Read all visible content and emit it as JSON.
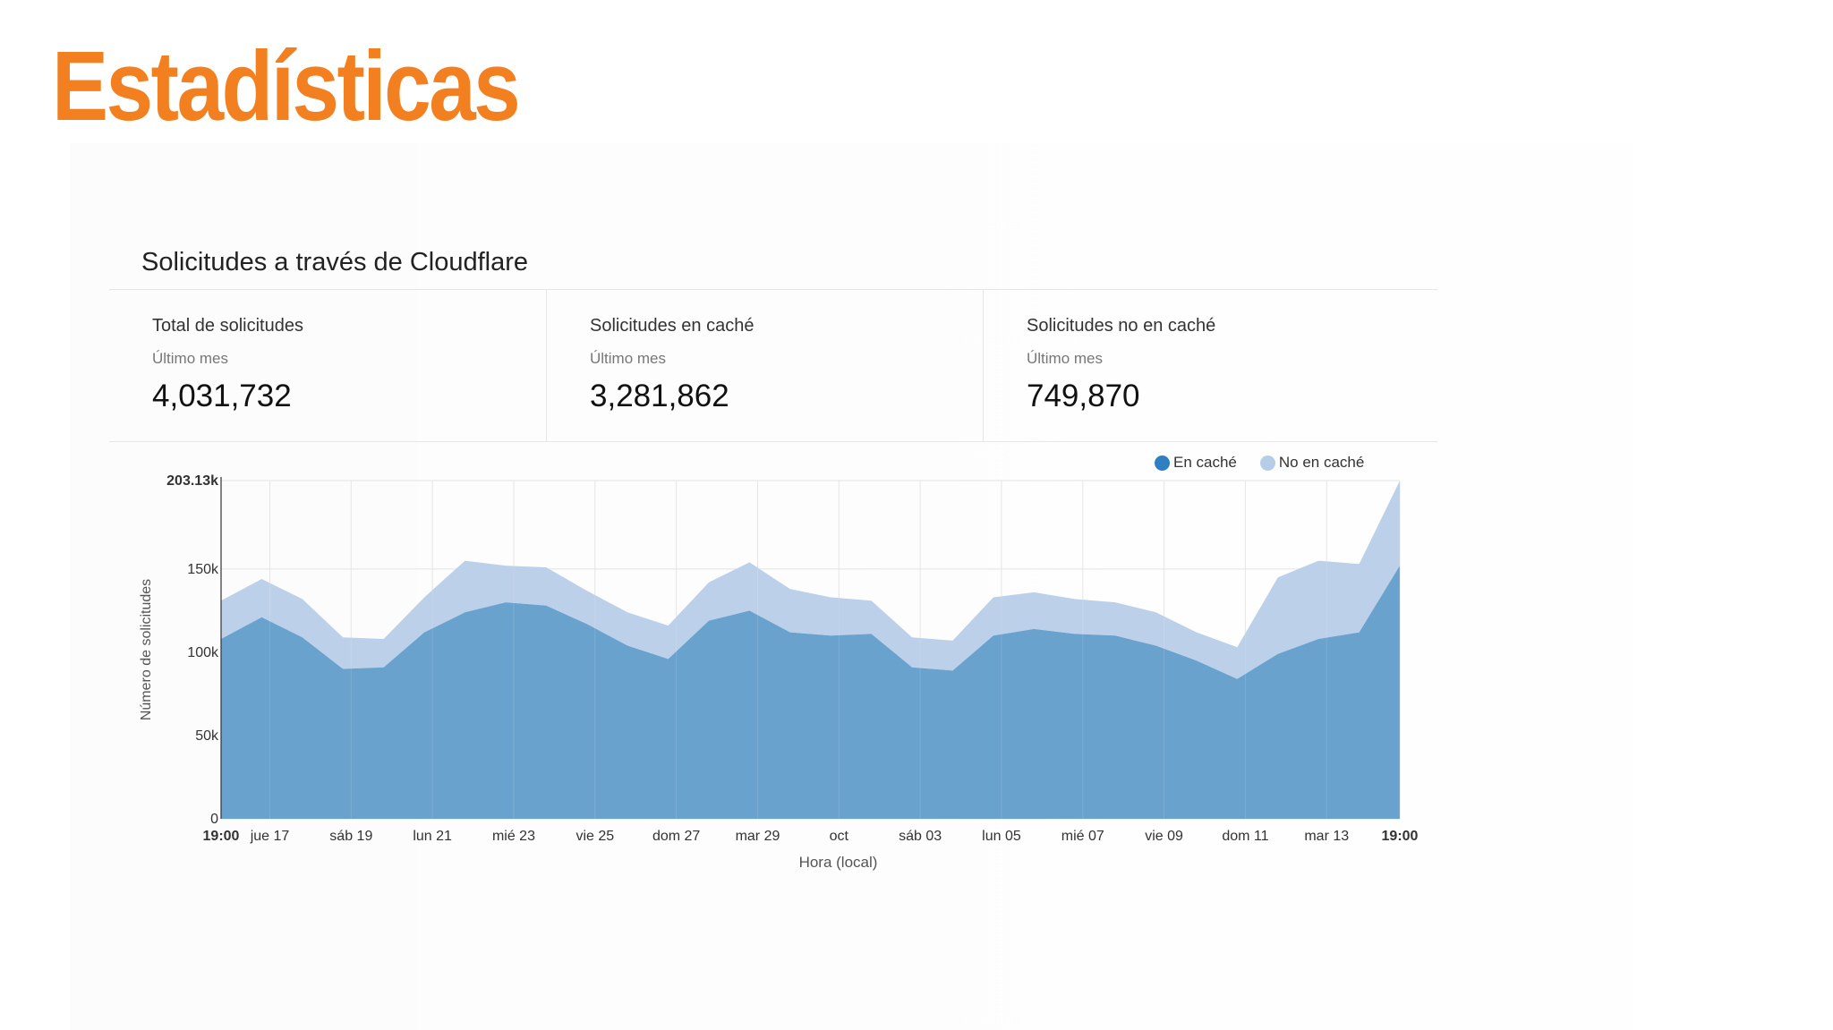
{
  "title": "Estadísticas",
  "panel": {
    "title": "Solicitudes a través de Cloudflare"
  },
  "stats": [
    {
      "label": "Total de solicitudes",
      "period": "Último mes",
      "value": "4,031,732"
    },
    {
      "label": "Solicitudes en caché",
      "period": "Último mes",
      "value": "3,281,862"
    },
    {
      "label": "Solicitudes no en caché",
      "period": "Último mes",
      "value": "749,870"
    }
  ],
  "legend": [
    {
      "label": "En caché",
      "color": "#2f7fc1"
    },
    {
      "label": "No en caché",
      "color": "#b6cde8"
    }
  ],
  "chart_data": {
    "type": "area",
    "stacked": true,
    "xlabel": "Hora (local)",
    "ylabel": "Número de solicitudes",
    "ylim": [
      0,
      203130
    ],
    "yticks": [
      {
        "value": 0,
        "label": "0"
      },
      {
        "value": 50000,
        "label": "50k"
      },
      {
        "value": 100000,
        "label": "100k"
      },
      {
        "value": 150000,
        "label": "150k"
      },
      {
        "value": 203130,
        "label": "203.13k"
      }
    ],
    "xticks": [
      {
        "at": 0,
        "label": "19:00",
        "bold": true
      },
      {
        "at": 1.2,
        "label": "jue 17"
      },
      {
        "at": 3.2,
        "label": "sáb 19"
      },
      {
        "at": 5.2,
        "label": "lun 21"
      },
      {
        "at": 7.2,
        "label": "mié 23"
      },
      {
        "at": 9.2,
        "label": "vie 25"
      },
      {
        "at": 11.2,
        "label": "dom 27"
      },
      {
        "at": 13.2,
        "label": "mar 29"
      },
      {
        "at": 15.2,
        "label": "oct"
      },
      {
        "at": 17.2,
        "label": "sáb 03"
      },
      {
        "at": 19.2,
        "label": "lun 05"
      },
      {
        "at": 21.2,
        "label": "mié 07"
      },
      {
        "at": 23.2,
        "label": "vie 09"
      },
      {
        "at": 25.2,
        "label": "dom 11"
      },
      {
        "at": 27.2,
        "label": "mar 13"
      },
      {
        "at": 29,
        "label": "19:00",
        "bold": true
      }
    ],
    "x": [
      0,
      1,
      2,
      3,
      4,
      5,
      6,
      7,
      8,
      9,
      10,
      11,
      12,
      13,
      14,
      15,
      16,
      17,
      18,
      19,
      20,
      21,
      22,
      23,
      24,
      25,
      26,
      27,
      28,
      29
    ],
    "series": [
      {
        "name": "En caché",
        "color": "#6aa2ce",
        "values": [
          108000,
          121000,
          109000,
          90000,
          91000,
          112000,
          124000,
          130000,
          128000,
          117000,
          104000,
          96000,
          119000,
          125000,
          112000,
          110000,
          111000,
          91000,
          89000,
          110000,
          114000,
          111000,
          110000,
          104000,
          95000,
          84000,
          99000,
          108000,
          112000,
          152000
        ]
      },
      {
        "name": "No en caché",
        "color": "#bcd0ea",
        "values": [
          23000,
          23000,
          23000,
          19000,
          17000,
          21000,
          31000,
          22000,
          23000,
          20000,
          20000,
          20000,
          23000,
          29000,
          26000,
          23000,
          20000,
          18000,
          18000,
          23000,
          22000,
          21000,
          20000,
          20000,
          17000,
          19000,
          46000,
          47000,
          41000,
          51000
        ]
      }
    ]
  }
}
